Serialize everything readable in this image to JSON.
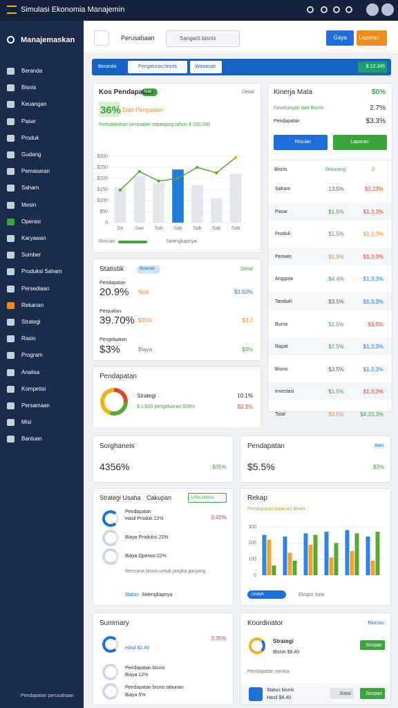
{
  "topbar": {
    "title": "Simulasi Ekonomia Manajemin"
  },
  "sidebar": {
    "brand": "Manajemaskan",
    "items": [
      "Beranda",
      "Bisnis",
      "Keuangan",
      "Pasar",
      "Produk",
      "Gudang",
      "Pemasaran",
      "Saham",
      "Mesin",
      "Operasi",
      "Karyawan",
      "Sumber",
      "Produksi Saham",
      "Persediaan",
      "Rekanan",
      "Strategi",
      "Rasio",
      "Program",
      "Analisa",
      "Kompetisi",
      "Persamaan",
      "Misi",
      "Bantuan"
    ],
    "footer": "Pendapatan perusahaan"
  },
  "header": {
    "company": "Perusahaan",
    "search": "Sangarti bisnis",
    "buttons": [
      "Gaya",
      "Laporan"
    ]
  },
  "tabs": {
    "items": [
      "Beranda",
      "Pengaturan bisnis",
      "Wawasan"
    ],
    "balance": "$ 12.345"
  },
  "revenue_card": {
    "title": "Kos Pendapatan",
    "badge": "Naik",
    "action": "Detail",
    "value": "36%",
    "value_note": "Dari Penjualan",
    "subtitle": "Pertumbuhan penjualan sepanjang tahun $ 150,000",
    "chart_data": {
      "type": "combo",
      "categories": [
        "Sa",
        "Sao",
        "Sab",
        "Sab",
        "Sab",
        "Sab",
        "Sab"
      ],
      "series": [
        {
          "kind": "bar",
          "colors": [
            "#e3e6ec",
            "#e3e6ec",
            "#e3e6ec",
            "#1e7be0",
            "#e3e6ec",
            "#e3e6ec",
            "#e3e6ec"
          ],
          "values": [
            160,
            210,
            180,
            240,
            170,
            110,
            220
          ]
        },
        {
          "kind": "line",
          "color": "#5aa832",
          "values": [
            147,
            231,
            188,
            200,
            250,
            225,
            294
          ]
        }
      ],
      "ylim": [
        0,
        300
      ],
      "yticks": [
        0,
        {
          "value": 50,
          "label": "$50"
        },
        {
          "value": 100,
          "label": "$100"
        },
        {
          "value": 150,
          "label": "$150"
        },
        {
          "value": 200,
          "label": "$200"
        },
        {
          "value": 250,
          "label": "$250"
        },
        {
          "value": 300,
          "label": "$300"
        }
      ]
    },
    "footer": [
      "Rincian",
      "Selengkapnya"
    ]
  },
  "performance_card": {
    "title": "Kinerja Mata",
    "value": "$0%",
    "metrics": [
      {
        "label": "Keuntungan dari Bisnis",
        "value": "2.7%"
      },
      {
        "label": "Pendapatan",
        "value": "$3.3%"
      }
    ],
    "buttons": [
      "Rincian",
      "Laporan"
    ],
    "table": {
      "header": [
        "Bisnis",
        "Sekarang",
        "$"
      ],
      "rows": [
        {
          "label": "Saham",
          "v1": "13.5%",
          "v2": "$3,23%",
          "c1": "#555c66",
          "c2": "#e2452c"
        },
        {
          "label": "Pasar",
          "v1": "$1.5%",
          "v2": "$1,3,3%",
          "c1": "#3aa63a",
          "c2": "#e2452c"
        },
        {
          "label": "Produk",
          "v1": "$1.5%",
          "v2": "$1,3,3%",
          "c1": "#3aa63a",
          "c2": "#f08c1a"
        },
        {
          "label": "Pemain",
          "v1": "$1.5%",
          "v2": "$1,3,3%",
          "c1": "#f08c1a",
          "c2": "#e2452c"
        },
        {
          "label": "Anggota",
          "v1": "$4.4%",
          "v2": "$1,3,3%",
          "c1": "#3aa63a",
          "c2": "#1e7be0"
        },
        {
          "label": "Tambah",
          "v1": "$3.5%",
          "v2": "$1,3,3%",
          "c1": "#555c66",
          "c2": "#1e7be0"
        },
        {
          "label": "Bursa",
          "v1": "$1.5%",
          "v2": "$3,5%",
          "c1": "#3aa63a",
          "c2": "#e2452c"
        },
        {
          "label": "Rapat",
          "v1": "$1.5%",
          "v2": "$1,3,3%",
          "c1": "#3aa63a",
          "c2": "#1e7be0"
        },
        {
          "label": "Bisnis",
          "v1": "$3.5%",
          "v2": "$1,3,3%",
          "c1": "#555c66",
          "c2": "#1e7be0"
        },
        {
          "label": "Investasi",
          "v1": "$1.5%",
          "v2": "$1,3,3%",
          "c1": "#3aa63a",
          "c2": "#e2452c"
        },
        {
          "label": "Total",
          "v1": "$3.5%",
          "v2": "$4,33,3%",
          "c1": "#f08c1a",
          "c2": "#3aa63a"
        }
      ]
    }
  },
  "stats_card": {
    "title": "Statistik",
    "badge": "Bulanan",
    "action": "Detail",
    "rows": [
      {
        "label": "Pendapatan",
        "value": "20.9%",
        "tag": "Naik",
        "right": "$3.50%"
      },
      {
        "label": "Penjualan",
        "value": "39.70%",
        "tag": "$35%",
        "right": "$3.2"
      },
      {
        "label": "Pengeluaran",
        "value": "$3%",
        "tag": "Biaya",
        "right": "$3%"
      }
    ]
  },
  "income_card": {
    "title": "Pendapatan",
    "label": "Strategi",
    "value": "10.1%",
    "note": "$ 1,500 pengeluaran $38%",
    "right": "$3.3%",
    "chart_data": {
      "type": "pie",
      "segments": [
        {
          "value": 25,
          "color": "#e2452c"
        },
        {
          "value": 30,
          "color": "#5aa832"
        },
        {
          "value": 45,
          "color": "#f5b019"
        }
      ]
    }
  },
  "small_cards": [
    {
      "title": "Sorghaneis",
      "value": "4356%",
      "change": "$35%"
    },
    {
      "title": "Pendapatan",
      "badge": "Baru",
      "value": "$5.5%",
      "change": "$3%"
    }
  ],
  "strategy_card": {
    "title": "Strategi Usaha",
    "subtitle": "Cakupan",
    "badge": "Lihat semua",
    "items": [
      {
        "label": "Pendapatan",
        "detail": "Hasil Produk 22%",
        "value": "3.45%"
      },
      {
        "detail": "Biaya Produksi 22%"
      },
      {
        "detail": "Biaya Operasi 22%"
      }
    ],
    "note": "Rencana bisnis untuk jangka panjang",
    "footer": [
      "Status",
      "Selengkapnya"
    ]
  },
  "recap_card": {
    "title": "Rekap",
    "subtitle": "Pendapatan bulanan bisnis",
    "chart_data": {
      "type": "bar",
      "categories": [
        null,
        null,
        null,
        null,
        null,
        null
      ],
      "series": [
        {
          "color": "#2f86dc",
          "values": [
            250,
            240,
            260,
            270,
            280,
            240
          ]
        },
        {
          "color": "#f3a227",
          "values": [
            220,
            140,
            190,
            110,
            150,
            90
          ]
        },
        {
          "color": "#5aa832",
          "values": [
            60,
            90,
            250,
            200,
            260,
            270
          ]
        }
      ],
      "ylim": [
        0,
        300
      ],
      "yticks": [
        0,
        100,
        200,
        300
      ]
    },
    "footer": [
      "Unduh",
      "Ekspor data"
    ]
  },
  "summary_card": {
    "title": "Summary",
    "value": "3.35%",
    "result": "Hasil $2.40",
    "items": [
      {
        "label": "Pendapatan bisnis",
        "detail": "Biaya 12%"
      },
      {
        "label": "Pendapatan bisnis tahunan",
        "detail": "Biaya 5%"
      }
    ]
  },
  "coordinator_card": {
    "title": "Koordinator",
    "action": "Rincian",
    "name": "Strategi",
    "detail": "Bisnis $8.40",
    "button": "Simpan",
    "note": "Pendapatan semua",
    "status": "Status bisnis",
    "status_detail": "Hasil $8.40",
    "buttons": [
      "Batal",
      "Simpan"
    ]
  }
}
